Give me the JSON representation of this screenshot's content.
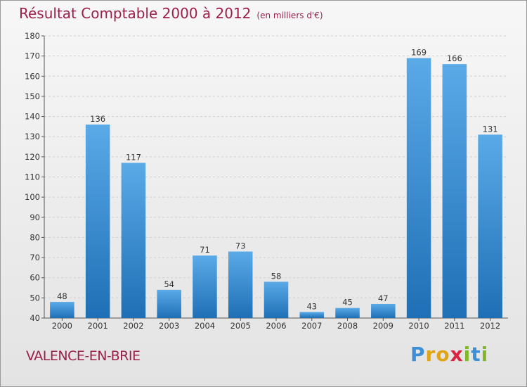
{
  "header": {
    "title": "Résultat Comptable 2000 à 2012",
    "subtitle": "(en milliers d'€)"
  },
  "footer": {
    "place": "VALENCE-EN-BRIE",
    "brand_letters": [
      "P",
      "r",
      "o",
      "x",
      "i",
      "t",
      "i"
    ],
    "brand_colors": [
      "#3d8fd6",
      "#e0a417",
      "#e0a417",
      "#d8243f",
      "#7fb828",
      "#3d8fd6",
      "#7fb828"
    ]
  },
  "colors": {
    "bar_light": "#5aaae8",
    "bar_dark": "#1e6fb5",
    "grid": "#d0d0d0",
    "axis": "#555555"
  },
  "chart_data": {
    "type": "bar",
    "title": "Résultat Comptable 2000 à 2012",
    "subtitle": "(en milliers d'€)",
    "categories": [
      "2000",
      "2001",
      "2002",
      "2003",
      "2004",
      "2005",
      "2006",
      "2007",
      "2008",
      "2009",
      "2010",
      "2011",
      "2012"
    ],
    "values": [
      48,
      136,
      117,
      54,
      71,
      73,
      58,
      43,
      45,
      47,
      169,
      166,
      131
    ],
    "ylim": [
      40,
      180
    ],
    "yticks": [
      40,
      50,
      60,
      70,
      80,
      90,
      100,
      110,
      120,
      130,
      140,
      150,
      160,
      170,
      180
    ],
    "grid": true,
    "xlabel": "",
    "ylabel": ""
  }
}
